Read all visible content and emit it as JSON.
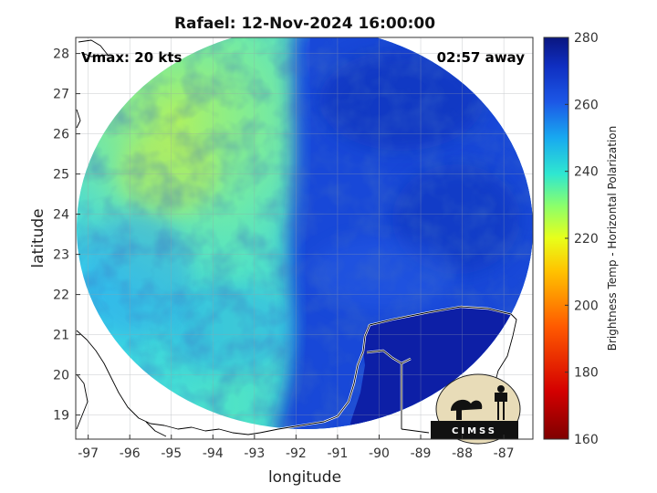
{
  "chart_data": {
    "type": "heatmap",
    "title": "Rafael: 12-Nov-2024 16:00:00",
    "xlabel": "longitude",
    "ylabel": "latitude",
    "xlim": [
      -97.3,
      -86.3
    ],
    "ylim": [
      18.4,
      28.4
    ],
    "xticks": [
      -97,
      -96,
      -95,
      -94,
      -93,
      -92,
      -91,
      -90,
      -89,
      -88,
      -87
    ],
    "yticks": [
      19,
      20,
      21,
      22,
      23,
      24,
      25,
      26,
      27,
      28
    ],
    "annotations": {
      "left": "Vmax: 20 kts",
      "right": "02:57 away"
    },
    "colorbar": {
      "label": "Brightness Temp - Horizontal Polarization",
      "range": [
        160,
        280
      ],
      "ticks": [
        160,
        180,
        200,
        220,
        240,
        260,
        280
      ]
    },
    "swath_center": {
      "lon": -92.0,
      "lat": 22.9
    },
    "field_regions": [
      {
        "region": "far west",
        "value": 232
      },
      {
        "region": "northwest",
        "value": 226
      },
      {
        "region": "west-central",
        "value": 241
      },
      {
        "region": "east",
        "value": 262
      },
      {
        "region": "northeast",
        "value": 270
      },
      {
        "region": "land (Yucatan)",
        "value": 278
      }
    ],
    "grid": true
  },
  "logo": {
    "text": "CIMSS"
  }
}
